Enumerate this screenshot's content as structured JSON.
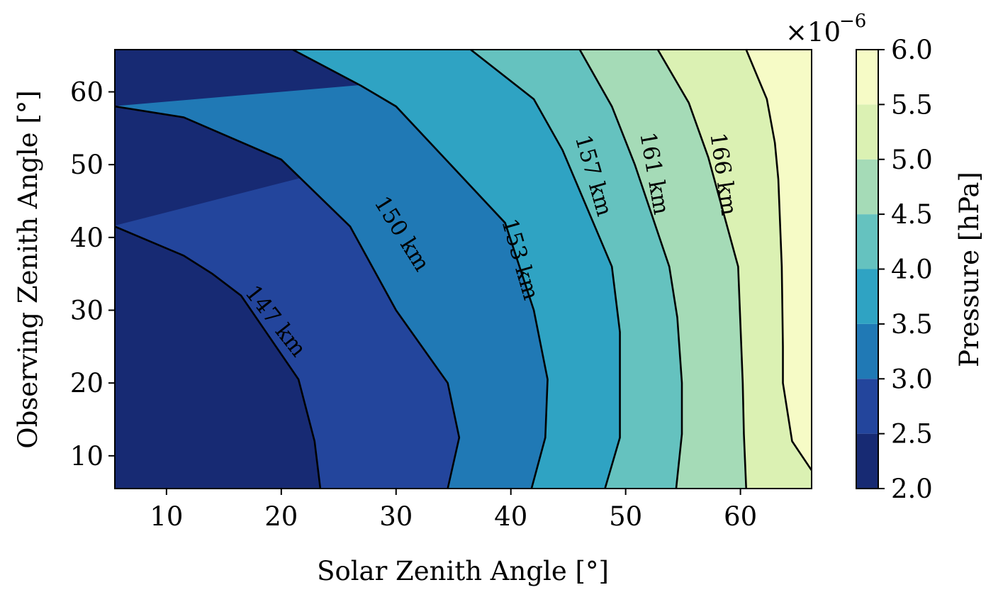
{
  "chart_data": {
    "type": "contour",
    "xlabel": "Solar Zenith Angle [°]",
    "ylabel": "Observing Zenith Angle [°]",
    "xlim": [
      5.5,
      66.2
    ],
    "ylim": [
      5.5,
      65.8
    ],
    "xticks": [
      10,
      20,
      30,
      40,
      50,
      60
    ],
    "yticks": [
      10,
      20,
      30,
      40,
      50,
      60
    ],
    "colorbar": {
      "label": "Pressure [hPa]",
      "multiplier": "×10",
      "exponent": "−6",
      "ticks": [
        "2.0",
        "2.5",
        "3.0",
        "3.5",
        "4.0",
        "4.5",
        "5.0",
        "5.5",
        "6.0"
      ],
      "bands": [
        {
          "range": [
            2.0,
            2.5
          ],
          "color": "#172a73"
        },
        {
          "range": [
            2.5,
            3.0
          ],
          "color": "#23459c"
        },
        {
          "range": [
            3.0,
            3.5
          ],
          "color": "#2079b5"
        },
        {
          "range": [
            3.5,
            4.0
          ],
          "color": "#2fa3c3"
        },
        {
          "range": [
            4.0,
            4.5
          ],
          "color": "#65c2bf"
        },
        {
          "range": [
            4.5,
            5.0
          ],
          "color": "#a5dbb7"
        },
        {
          "range": [
            5.0,
            5.5
          ],
          "color": "#dbf1b3"
        },
        {
          "range": [
            5.5,
            6.0
          ],
          "color": "#f6fbc6"
        }
      ]
    },
    "contours": [
      {
        "label": "147 km",
        "points": [
          [
            5.5,
            41.5
          ],
          [
            11.5,
            37.5
          ],
          [
            14,
            35
          ],
          [
            16.5,
            32
          ],
          [
            21.5,
            20.5
          ],
          [
            22.9,
            12
          ],
          [
            23.4,
            5.5
          ]
        ]
      },
      {
        "label": "150 km",
        "points": [
          [
            5.5,
            58
          ],
          [
            11.5,
            56.5
          ],
          [
            20,
            50.7
          ],
          [
            26,
            41.5
          ],
          [
            30,
            30
          ],
          [
            34.5,
            20
          ],
          [
            35.5,
            12.5
          ],
          [
            34.5,
            5.5
          ]
        ]
      },
      {
        "label": "153 km",
        "points": [
          [
            21,
            65.8
          ],
          [
            27,
            60.8
          ],
          [
            30,
            58
          ],
          [
            39.5,
            42
          ],
          [
            42,
            30
          ],
          [
            43.2,
            20.5
          ],
          [
            43,
            12.5
          ],
          [
            41.8,
            5.5
          ]
        ]
      },
      {
        "label": "157 km",
        "points": [
          [
            36.5,
            65.8
          ],
          [
            42,
            59
          ],
          [
            44.5,
            52
          ],
          [
            48.8,
            36
          ],
          [
            49.5,
            27
          ],
          [
            49.5,
            19
          ],
          [
            49.5,
            12.5
          ],
          [
            48.2,
            5.5
          ]
        ]
      },
      {
        "label": "161 km",
        "points": [
          [
            46,
            65.8
          ],
          [
            48.8,
            58
          ],
          [
            50.8,
            50
          ],
          [
            53.8,
            36
          ],
          [
            54.5,
            29
          ],
          [
            54.9,
            20
          ],
          [
            54.9,
            13
          ],
          [
            54.4,
            5.5
          ]
        ]
      },
      {
        "label": "166 km",
        "points": [
          [
            52.8,
            65.8
          ],
          [
            55.5,
            58.5
          ],
          [
            57.2,
            51
          ],
          [
            59.8,
            36
          ],
          [
            60,
            28
          ],
          [
            60.2,
            20
          ],
          [
            60.3,
            13
          ],
          [
            60.5,
            5.5
          ]
        ]
      },
      {
        "label": "",
        "points": [
          [
            60.5,
            65.8
          ],
          [
            62.3,
            59
          ],
          [
            63,
            53
          ],
          [
            63.3,
            48
          ],
          [
            63.6,
            36
          ],
          [
            63.7,
            25
          ],
          [
            63.7,
            20
          ],
          [
            64.5,
            12
          ],
          [
            66.2,
            8
          ]
        ]
      }
    ]
  }
}
